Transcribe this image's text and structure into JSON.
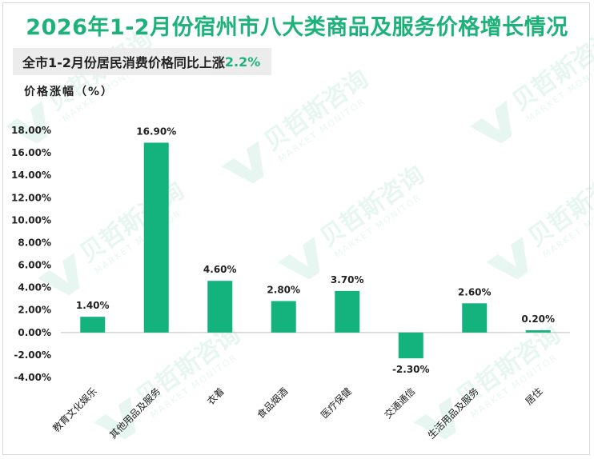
{
  "header": {
    "title": "2026年1-2月份宿州市八大类商品及服务价格增长情况",
    "subtitle_prefix": "全市1-2月份居民消费价格同比上涨",
    "subtitle_value": "2.2%",
    "ylabel": "价格涨幅（%）"
  },
  "watermark": {
    "cn": "贝哲斯咨询",
    "en": "MARKET MONITOR"
  },
  "colors": {
    "accent": "#1cb27a",
    "bar": "#14b37d"
  },
  "chart_data": {
    "type": "bar",
    "categories": [
      "教育文化娱乐",
      "其他用品及服务",
      "衣着",
      "食品烟酒",
      "医疗保健",
      "交通通信",
      "生活用品及服务",
      "居住"
    ],
    "values": [
      1.4,
      16.9,
      4.6,
      2.8,
      3.7,
      -2.3,
      2.6,
      0.2
    ],
    "value_labels": [
      "1.40%",
      "16.90%",
      "4.60%",
      "2.80%",
      "3.70%",
      "-2.30%",
      "2.60%",
      "0.20%"
    ],
    "ylabel": "价格涨幅（%）",
    "ylim": [
      -4,
      18
    ],
    "yticks": [
      -4,
      -2,
      0,
      2,
      4,
      6,
      8,
      10,
      12,
      14,
      16,
      18
    ],
    "ytick_labels": [
      "-4.00%",
      "-2.00%",
      "0.00%",
      "2.00%",
      "4.00%",
      "6.00%",
      "8.00%",
      "10.00%",
      "12.00%",
      "14.00%",
      "16.00%",
      "18.00%"
    ],
    "grid": false,
    "legend": "none"
  }
}
